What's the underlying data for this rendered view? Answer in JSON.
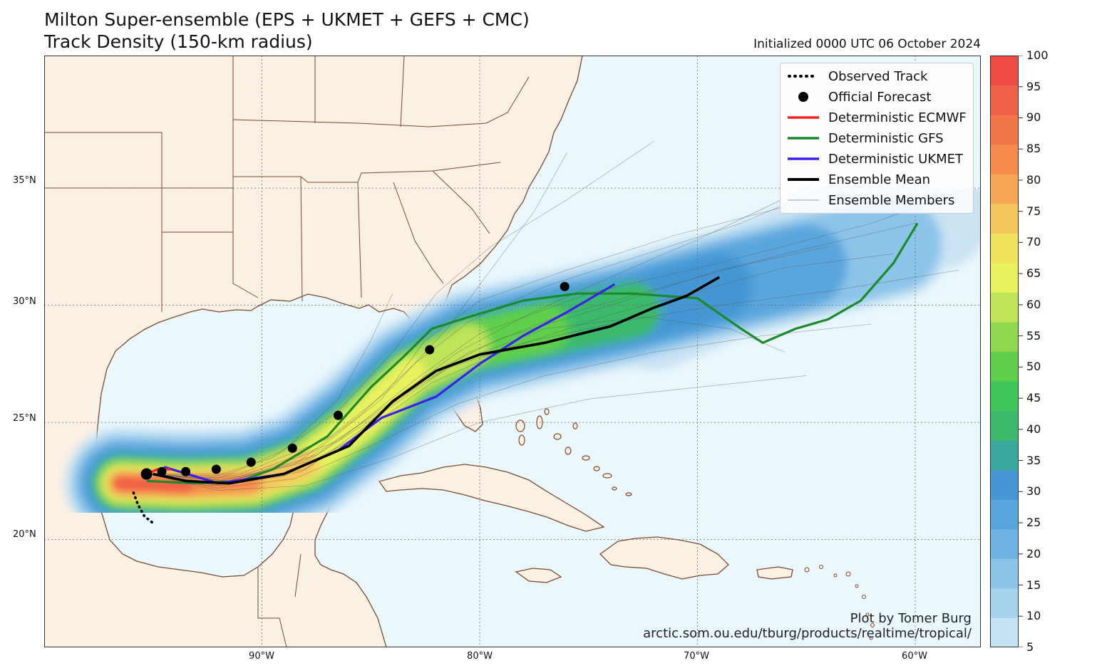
{
  "title_line1": "Milton Super-ensemble (EPS + UKMET + GEFS + CMC)",
  "title_line2": "Track Density (150-km radius)",
  "initialized": "Initialized 0000 UTC 06 October 2024",
  "lat_labels": [
    "35°N",
    "30°N",
    "25°N",
    "20°N"
  ],
  "lon_labels": [
    "90°W",
    "80°W",
    "70°W",
    "60°W"
  ],
  "colorbar_ticks": [
    "100",
    "95",
    "90",
    "85",
    "80",
    "75",
    "70",
    "65",
    "60",
    "55",
    "50",
    "45",
    "40",
    "35",
    "30",
    "25",
    "20",
    "15",
    "10",
    "5"
  ],
  "colorbar_colors": [
    "#c6e2f3",
    "#a8d3ef",
    "#8cc4ea",
    "#6fb3e3",
    "#5aa6dc",
    "#4597d4",
    "#3aa89c",
    "#3cb96c",
    "#3fc759",
    "#5ecf4b",
    "#8fd84e",
    "#c1e45a",
    "#e8f25e",
    "#f2e35e",
    "#f5c65d",
    "#f6a655",
    "#f58c4e",
    "#f3764a",
    "#f15f46",
    "#ef4a44"
  ],
  "legend": [
    {
      "label": "Observed Track",
      "symbol": "dotted",
      "color": "#000000"
    },
    {
      "label": "Official Forecast",
      "symbol": "dot",
      "color": "#000000"
    },
    {
      "label": "Deterministic ECMWF",
      "symbol": "line",
      "color": "#ff2020"
    },
    {
      "label": "Deterministic GFS",
      "symbol": "line",
      "color": "#1a8a2a"
    },
    {
      "label": "Deterministic UKMET",
      "symbol": "line",
      "color": "#3b1ff0"
    },
    {
      "label": "Ensemble Mean",
      "symbol": "thick",
      "color": "#000000"
    },
    {
      "label": "Ensemble Members",
      "symbol": "thin",
      "color": "#999999"
    }
  ],
  "credit_line1": "Plot by Tomer Burg",
  "credit_line2": "arctic.som.ou.edu/tburg/products/realtime/tropical/",
  "map_colors": {
    "ocean": "#eaf7fd",
    "land": "#fbf0e4",
    "border": "#7a4a2e"
  },
  "observed_track": [
    [
      -95.9,
      22.0
    ],
    [
      -95.7,
      21.5
    ],
    [
      -95.4,
      21.0
    ],
    [
      -95.0,
      20.7
    ]
  ],
  "official_forecast": [
    [
      -95.3,
      22.8
    ],
    [
      -94.6,
      22.9
    ],
    [
      -93.5,
      22.9
    ],
    [
      -92.1,
      23.0
    ],
    [
      -90.5,
      23.3
    ],
    [
      -88.6,
      23.9
    ],
    [
      -86.5,
      25.3
    ],
    [
      -82.3,
      28.1
    ],
    [
      -76.1,
      30.8
    ]
  ],
  "tracks": {
    "ecmwf": [
      [
        -95.3,
        22.8
      ],
      [
        -94.8,
        23.0
      ],
      [
        -94.2,
        23.0
      ]
    ],
    "gfs": [
      [
        -95.3,
        22.5
      ],
      [
        -93.0,
        22.4
      ],
      [
        -91.0,
        22.5
      ],
      [
        -89.5,
        23.0
      ],
      [
        -87.0,
        24.4
      ],
      [
        -85.0,
        26.5
      ],
      [
        -83.5,
        27.8
      ],
      [
        -82.2,
        29.0
      ],
      [
        -80.5,
        29.5
      ],
      [
        -78.0,
        30.2
      ],
      [
        -75.5,
        30.5
      ],
      [
        -73.0,
        30.5
      ],
      [
        -70.0,
        30.3
      ],
      [
        -68.0,
        29.0
      ],
      [
        -67.0,
        28.4
      ],
      [
        -65.5,
        29.0
      ],
      [
        -64.0,
        29.4
      ],
      [
        -62.5,
        30.2
      ],
      [
        -61.0,
        31.8
      ],
      [
        -59.9,
        33.5
      ]
    ],
    "ukmet": [
      [
        -94.5,
        23.1
      ],
      [
        -92.0,
        22.4
      ],
      [
        -89.0,
        22.8
      ],
      [
        -86.5,
        23.8
      ],
      [
        -84.5,
        25.2
      ],
      [
        -82.0,
        26.1
      ],
      [
        -80.0,
        27.5
      ],
      [
        -78.0,
        28.7
      ],
      [
        -76.0,
        29.7
      ],
      [
        -73.8,
        30.9
      ]
    ],
    "mean": [
      [
        -95.0,
        22.8
      ],
      [
        -93.5,
        22.5
      ],
      [
        -91.5,
        22.4
      ],
      [
        -89.0,
        22.8
      ],
      [
        -86.0,
        24.0
      ],
      [
        -84.0,
        25.9
      ],
      [
        -82.0,
        27.2
      ],
      [
        -80.0,
        27.9
      ],
      [
        -77.0,
        28.4
      ],
      [
        -74.0,
        29.1
      ],
      [
        -72.0,
        29.9
      ],
      [
        -70.5,
        30.4
      ],
      [
        -69.0,
        31.2
      ]
    ]
  },
  "members": [
    [
      [
        -95.3,
        22.8
      ],
      [
        -92.0,
        22.3
      ],
      [
        -88.0,
        23.0
      ],
      [
        -85.0,
        25.0
      ],
      [
        -82.5,
        27.0
      ],
      [
        -79.0,
        28.6
      ],
      [
        -74.0,
        30.0
      ],
      [
        -69.0,
        31.5
      ],
      [
        -64.0,
        32.5
      ]
    ],
    [
      [
        -95.3,
        22.8
      ],
      [
        -91.0,
        22.6
      ],
      [
        -87.5,
        23.8
      ],
      [
        -84.5,
        26.0
      ],
      [
        -82.5,
        28.5
      ],
      [
        -80.0,
        30.2
      ],
      [
        -76.0,
        31.5
      ],
      [
        -71.0,
        33.0
      ],
      [
        -66.0,
        34.2
      ]
    ],
    [
      [
        -95.3,
        22.8
      ],
      [
        -92.0,
        22.2
      ],
      [
        -88.5,
        22.6
      ],
      [
        -85.0,
        24.0
      ],
      [
        -81.0,
        25.8
      ],
      [
        -77.0,
        27.0
      ],
      [
        -72.0,
        28.0
      ],
      [
        -67.0,
        28.7
      ],
      [
        -62.0,
        29.2
      ]
    ],
    [
      [
        -95.3,
        22.8
      ],
      [
        -91.5,
        22.5
      ],
      [
        -88.0,
        23.4
      ],
      [
        -84.0,
        25.8
      ],
      [
        -80.5,
        28.0
      ],
      [
        -76.5,
        29.5
      ],
      [
        -71.5,
        30.8
      ],
      [
        -66.0,
        32.2
      ],
      [
        -60.0,
        33.5
      ]
    ],
    [
      [
        -95.3,
        22.8
      ],
      [
        -92.5,
        22.6
      ],
      [
        -89.5,
        23.5
      ],
      [
        -86.5,
        25.5
      ],
      [
        -84.0,
        28.0
      ],
      [
        -82.0,
        30.5
      ],
      [
        -79.5,
        32.5
      ],
      [
        -76.0,
        34.5
      ],
      [
        -72.0,
        37.0
      ]
    ],
    [
      [
        -95.3,
        22.8
      ],
      [
        -92.0,
        22.1
      ],
      [
        -88.0,
        22.3
      ],
      [
        -84.0,
        23.5
      ],
      [
        -80.0,
        25.0
      ],
      [
        -75.0,
        26.0
      ],
      [
        -70.0,
        26.5
      ],
      [
        -65.0,
        27.0
      ]
    ],
    [
      [
        -95.3,
        22.8
      ],
      [
        -91.0,
        22.7
      ],
      [
        -86.5,
        24.2
      ],
      [
        -83.0,
        26.8
      ],
      [
        -80.0,
        28.8
      ],
      [
        -75.0,
        30.5
      ],
      [
        -69.0,
        31.8
      ],
      [
        -62.0,
        33.5
      ],
      [
        -57.5,
        35.0
      ]
    ],
    [
      [
        -95.3,
        22.8
      ],
      [
        -92.0,
        22.4
      ],
      [
        -88.5,
        23.2
      ],
      [
        -85.5,
        25.3
      ],
      [
        -83.0,
        27.5
      ],
      [
        -80.5,
        29.3
      ],
      [
        -77.0,
        30.8
      ],
      [
        -73.0,
        32.0
      ],
      [
        -68.0,
        33.5
      ],
      [
        -63.0,
        35.5
      ]
    ],
    [
      [
        -95.3,
        22.8
      ],
      [
        -91.5,
        22.5
      ],
      [
        -87.5,
        23.6
      ],
      [
        -84.5,
        25.6
      ],
      [
        -81.5,
        27.3
      ],
      [
        -78.0,
        28.4
      ],
      [
        -73.5,
        29.3
      ],
      [
        -69.0,
        30.0
      ],
      [
        -64.0,
        30.6
      ],
      [
        -58.0,
        31.5
      ]
    ],
    [
      [
        -95.3,
        22.8
      ],
      [
        -92.5,
        22.3
      ],
      [
        -89.0,
        22.7
      ],
      [
        -86.0,
        24.2
      ],
      [
        -83.5,
        26.3
      ],
      [
        -81.0,
        28.0
      ],
      [
        -78.0,
        29.5
      ],
      [
        -74.5,
        31.0
      ],
      [
        -70.0,
        32.8
      ],
      [
        -65.0,
        35.0
      ],
      [
        -61.0,
        37.5
      ]
    ],
    [
      [
        -95.3,
        22.8
      ],
      [
        -91.0,
        22.8
      ],
      [
        -87.0,
        24.3
      ],
      [
        -84.0,
        26.5
      ],
      [
        -81.5,
        29.0
      ],
      [
        -79.5,
        31.5
      ],
      [
        -77.5,
        34.0
      ],
      [
        -76.0,
        36.5
      ]
    ],
    [
      [
        -95.3,
        22.8
      ],
      [
        -92.0,
        22.5
      ],
      [
        -88.0,
        23.3
      ],
      [
        -84.5,
        25.4
      ],
      [
        -81.0,
        27.6
      ],
      [
        -77.0,
        29.0
      ],
      [
        -72.5,
        29.5
      ],
      [
        -68.5,
        29.0
      ],
      [
        -66.0,
        28.0
      ]
    ],
    [
      [
        -95.3,
        22.8
      ],
      [
        -91.8,
        22.3
      ],
      [
        -88.2,
        22.9
      ],
      [
        -85.2,
        24.7
      ],
      [
        -82.2,
        26.7
      ],
      [
        -78.5,
        28.2
      ],
      [
        -74.0,
        29.6
      ],
      [
        -70.0,
        30.6
      ],
      [
        -66.0,
        31.6
      ],
      [
        -61.0,
        32.2
      ]
    ],
    [
      [
        -95.3,
        22.8
      ],
      [
        -92.0,
        22.6
      ],
      [
        -89.0,
        23.8
      ],
      [
        -86.5,
        26.0
      ],
      [
        -85.0,
        28.5
      ],
      [
        -84.0,
        30.5
      ]
    ]
  ]
}
